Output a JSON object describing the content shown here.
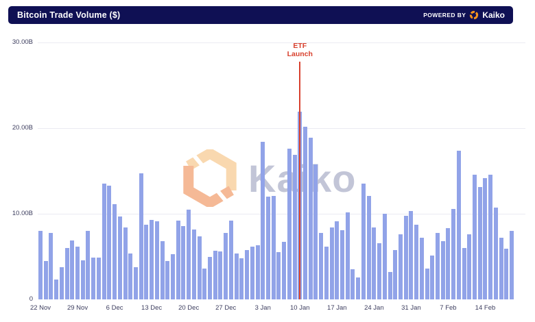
{
  "header": {
    "title": "Bitcoin Trade Volume ($)",
    "powered_by": "POWERED BY",
    "brand": "Kaiko"
  },
  "watermark": {
    "text": "Kaiko"
  },
  "annotation": {
    "line1": "ETF",
    "line2": "Launch"
  },
  "colors": {
    "header_bg": "#0f1054",
    "bar": "#91a3e8",
    "annotation_red": "#d8402d",
    "gridline": "#ebebf2",
    "axis_text": "#3c3d5e",
    "watermark_text": "#b8bcd1",
    "watermark_orange_light": "#f8cf9c",
    "watermark_orange_dark": "#f3a87c",
    "logo_orange": "#f7941d"
  },
  "chart_data": {
    "type": "bar",
    "title": "Bitcoin Trade Volume ($)",
    "unit": "billions USD",
    "ylim": [
      0,
      30
    ],
    "grid": "horizontal",
    "legend": "none",
    "y_ticks": [
      {
        "label": "30.00B",
        "value": 30
      },
      {
        "label": "20.00B",
        "value": 20
      },
      {
        "label": "10.00B",
        "value": 10
      },
      {
        "label": "0",
        "value": 0
      }
    ],
    "x_tick_labels": [
      "22 Nov",
      "29 Nov",
      "6 Dec",
      "13 Dec",
      "20 Dec",
      "27 Dec",
      "3 Jan",
      "10 Jan",
      "17 Jan",
      "24 Jan",
      "31 Jan",
      "7 Feb",
      "14 Feb"
    ],
    "x_tick_every_n_bars": 7,
    "annotation": {
      "text": "ETF Launch",
      "x": "10 Jan",
      "x_index": 49,
      "color": "#d8402d"
    },
    "x": [
      "22 Nov",
      "23 Nov",
      "24 Nov",
      "25 Nov",
      "26 Nov",
      "27 Nov",
      "28 Nov",
      "29 Nov",
      "30 Nov",
      "1 Dec",
      "2 Dec",
      "3 Dec",
      "4 Dec",
      "5 Dec",
      "6 Dec",
      "7 Dec",
      "8 Dec",
      "9 Dec",
      "10 Dec",
      "11 Dec",
      "12 Dec",
      "13 Dec",
      "14 Dec",
      "15 Dec",
      "16 Dec",
      "17 Dec",
      "18 Dec",
      "19 Dec",
      "20 Dec",
      "21 Dec",
      "22 Dec",
      "23 Dec",
      "24 Dec",
      "25 Dec",
      "26 Dec",
      "27 Dec",
      "28 Dec",
      "29 Dec",
      "30 Dec",
      "31 Dec",
      "1 Jan",
      "2 Jan",
      "3 Jan",
      "4 Jan",
      "5 Jan",
      "6 Jan",
      "7 Jan",
      "8 Jan",
      "9 Jan",
      "10 Jan",
      "11 Jan",
      "12 Jan",
      "13 Jan",
      "14 Jan",
      "15 Jan",
      "16 Jan",
      "17 Jan",
      "18 Jan",
      "19 Jan",
      "20 Jan",
      "21 Jan",
      "22 Jan",
      "23 Jan",
      "24 Jan",
      "25 Jan",
      "26 Jan",
      "27 Jan",
      "28 Jan",
      "29 Jan",
      "30 Jan",
      "31 Jan",
      "1 Feb",
      "2 Feb",
      "3 Feb",
      "4 Feb",
      "5 Feb",
      "6 Feb",
      "7 Feb",
      "8 Feb",
      "9 Feb",
      "10 Feb",
      "11 Feb",
      "12 Feb",
      "13 Feb",
      "14 Feb",
      "15 Feb",
      "16 Feb",
      "17 Feb",
      "18 Feb",
      "19 Feb"
    ],
    "values": [
      8.0,
      4.5,
      7.8,
      2.3,
      3.8,
      6.0,
      6.9,
      6.2,
      4.6,
      8.0,
      4.9,
      4.9,
      13.5,
      13.3,
      11.1,
      9.7,
      8.4,
      5.4,
      3.8,
      14.7,
      8.7,
      9.3,
      9.1,
      6.8,
      4.5,
      5.3,
      9.2,
      8.6,
      10.5,
      8.2,
      7.4,
      3.6,
      5.0,
      5.7,
      5.6,
      7.8,
      9.2,
      5.4,
      4.8,
      5.8,
      6.2,
      6.3,
      18.4,
      12.0,
      12.1,
      5.5,
      6.7,
      17.6,
      16.9,
      21.9,
      20.2,
      18.9,
      15.8,
      7.8,
      6.2,
      8.4,
      9.1,
      8.1,
      10.2,
      3.5,
      2.6,
      13.5,
      12.1,
      8.4,
      6.6,
      10.0,
      3.2,
      5.8,
      7.6,
      9.8,
      10.3,
      8.7,
      7.2,
      3.6,
      5.1,
      7.8,
      6.8,
      8.3,
      10.6,
      17.4,
      6.0,
      7.6,
      14.6,
      13.1,
      14.2,
      14.6,
      10.7,
      7.2,
      5.9,
      8.0
    ]
  }
}
